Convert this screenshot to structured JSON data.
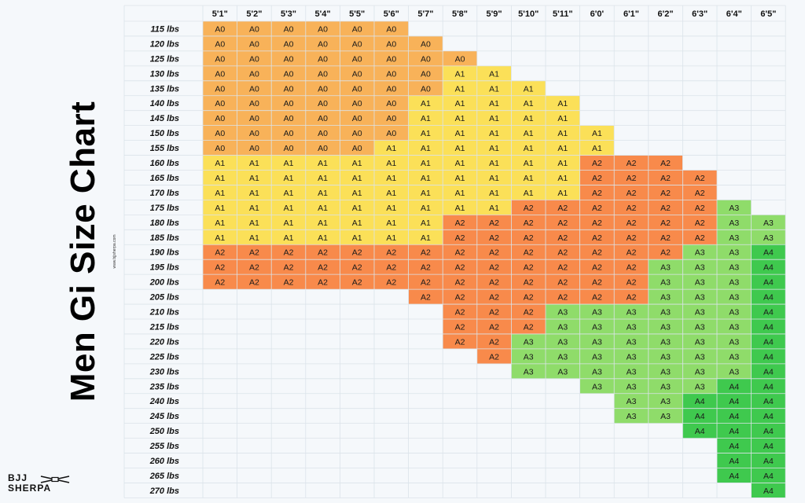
{
  "title": "Men Gi Size Chart",
  "website": "www.bjjsherpa.com",
  "logo": {
    "line1": "BJJ",
    "line2": "SHERPA"
  },
  "colors": {
    "A0": "#f8b259",
    "A1": "#fbe058",
    "A2": "#f88a4b",
    "A3": "#8fdc6a",
    "A4": "#3fc94e",
    "grid": "#dbe3ea"
  },
  "chart_data": {
    "type": "table",
    "title": "Men Gi Size Chart",
    "columns": [
      "5'1\"",
      "5'2\"",
      "5'3\"",
      "5'4\"",
      "5'5\"",
      "5'6\"",
      "5'7\"",
      "5'8\"",
      "5'9\"",
      "5'10\"",
      "5'11\"",
      "6'0'",
      "6'1\"",
      "6'2\"",
      "6'3\"",
      "6'4\"",
      "6'5\""
    ],
    "rows": [
      "115 lbs",
      "120 lbs",
      "125 lbs",
      "130 lbs",
      "135 lbs",
      "140 lbs",
      "145 lbs",
      "150 lbs",
      "155 lbs",
      "160 lbs",
      "165 lbs",
      "170 lbs",
      "175 lbs",
      "180 lbs",
      "185 lbs",
      "190 lbs",
      "195 lbs",
      "200 lbs",
      "205 lbs",
      "210 lbs",
      "215 lbs",
      "220 lbs",
      "225 lbs",
      "230 lbs",
      "235 lbs",
      "240 lbs",
      "245 lbs",
      "250 lbs",
      "255 lbs",
      "260 lbs",
      "265 lbs",
      "270 lbs"
    ],
    "cells": [
      [
        "A0",
        "A0",
        "A0",
        "A0",
        "A0",
        "A0",
        "",
        "",
        "",
        "",
        "",
        "",
        "",
        "",
        "",
        "",
        ""
      ],
      [
        "A0",
        "A0",
        "A0",
        "A0",
        "A0",
        "A0",
        "A0",
        "",
        "",
        "",
        "",
        "",
        "",
        "",
        "",
        "",
        ""
      ],
      [
        "A0",
        "A0",
        "A0",
        "A0",
        "A0",
        "A0",
        "A0",
        "A0",
        "",
        "",
        "",
        "",
        "",
        "",
        "",
        "",
        ""
      ],
      [
        "A0",
        "A0",
        "A0",
        "A0",
        "A0",
        "A0",
        "A0",
        "A1",
        "A1",
        "",
        "",
        "",
        "",
        "",
        "",
        "",
        ""
      ],
      [
        "A0",
        "A0",
        "A0",
        "A0",
        "A0",
        "A0",
        "A0",
        "A1",
        "A1",
        "A1",
        "",
        "",
        "",
        "",
        "",
        "",
        ""
      ],
      [
        "A0",
        "A0",
        "A0",
        "A0",
        "A0",
        "A0",
        "A1",
        "A1",
        "A1",
        "A1",
        "A1",
        "",
        "",
        "",
        "",
        "",
        ""
      ],
      [
        "A0",
        "A0",
        "A0",
        "A0",
        "A0",
        "A0",
        "A1",
        "A1",
        "A1",
        "A1",
        "A1",
        "",
        "",
        "",
        "",
        "",
        ""
      ],
      [
        "A0",
        "A0",
        "A0",
        "A0",
        "A0",
        "A0",
        "A1",
        "A1",
        "A1",
        "A1",
        "A1",
        "A1",
        "",
        "",
        "",
        "",
        ""
      ],
      [
        "A0",
        "A0",
        "A0",
        "A0",
        "A0",
        "A1",
        "A1",
        "A1",
        "A1",
        "A1",
        "A1",
        "A1",
        "",
        "",
        "",
        "",
        ""
      ],
      [
        "A1",
        "A1",
        "A1",
        "A1",
        "A1",
        "A1",
        "A1",
        "A1",
        "A1",
        "A1",
        "A1",
        "A2",
        "A2",
        "A2",
        "",
        "",
        ""
      ],
      [
        "A1",
        "A1",
        "A1",
        "A1",
        "A1",
        "A1",
        "A1",
        "A1",
        "A1",
        "A1",
        "A1",
        "A2",
        "A2",
        "A2",
        "A2",
        "",
        ""
      ],
      [
        "A1",
        "A1",
        "A1",
        "A1",
        "A1",
        "A1",
        "A1",
        "A1",
        "A1",
        "A1",
        "A1",
        "A2",
        "A2",
        "A2",
        "A2",
        "",
        ""
      ],
      [
        "A1",
        "A1",
        "A1",
        "A1",
        "A1",
        "A1",
        "A1",
        "A1",
        "A1",
        "A2",
        "A2",
        "A2",
        "A2",
        "A2",
        "A2",
        "A3",
        ""
      ],
      [
        "A1",
        "A1",
        "A1",
        "A1",
        "A1",
        "A1",
        "A1",
        "A2",
        "A2",
        "A2",
        "A2",
        "A2",
        "A2",
        "A2",
        "A2",
        "A3",
        "A3"
      ],
      [
        "A1",
        "A1",
        "A1",
        "A1",
        "A1",
        "A1",
        "A1",
        "A2",
        "A2",
        "A2",
        "A2",
        "A2",
        "A2",
        "A2",
        "A2",
        "A3",
        "A3"
      ],
      [
        "A2",
        "A2",
        "A2",
        "A2",
        "A2",
        "A2",
        "A2",
        "A2",
        "A2",
        "A2",
        "A2",
        "A2",
        "A2",
        "A2",
        "A3",
        "A3",
        "A4"
      ],
      [
        "A2",
        "A2",
        "A2",
        "A2",
        "A2",
        "A2",
        "A2",
        "A2",
        "A2",
        "A2",
        "A2",
        "A2",
        "A2",
        "A3",
        "A3",
        "A3",
        "A4"
      ],
      [
        "A2",
        "A2",
        "A2",
        "A2",
        "A2",
        "A2",
        "A2",
        "A2",
        "A2",
        "A2",
        "A2",
        "A2",
        "A2",
        "A3",
        "A3",
        "A3",
        "A4"
      ],
      [
        "",
        "",
        "",
        "",
        "",
        "",
        "A2",
        "A2",
        "A2",
        "A2",
        "A2",
        "A2",
        "A2",
        "A3",
        "A3",
        "A3",
        "A4"
      ],
      [
        "",
        "",
        "",
        "",
        "",
        "",
        "",
        "A2",
        "A2",
        "A2",
        "A3",
        "A3",
        "A3",
        "A3",
        "A3",
        "A3",
        "A4"
      ],
      [
        "",
        "",
        "",
        "",
        "",
        "",
        "",
        "A2",
        "A2",
        "A2",
        "A3",
        "A3",
        "A3",
        "A3",
        "A3",
        "A3",
        "A4"
      ],
      [
        "",
        "",
        "",
        "",
        "",
        "",
        "",
        "A2",
        "A2",
        "A3",
        "A3",
        "A3",
        "A3",
        "A3",
        "A3",
        "A3",
        "A4"
      ],
      [
        "",
        "",
        "",
        "",
        "",
        "",
        "",
        "",
        "A2",
        "A3",
        "A3",
        "A3",
        "A3",
        "A3",
        "A3",
        "A3",
        "A4"
      ],
      [
        "",
        "",
        "",
        "",
        "",
        "",
        "",
        "",
        "",
        "A3",
        "A3",
        "A3",
        "A3",
        "A3",
        "A3",
        "A3",
        "A4"
      ],
      [
        "",
        "",
        "",
        "",
        "",
        "",
        "",
        "",
        "",
        "",
        "",
        "A3",
        "A3",
        "A3",
        "A3",
        "A4",
        "A4"
      ],
      [
        "",
        "",
        "",
        "",
        "",
        "",
        "",
        "",
        "",
        "",
        "",
        "",
        "A3",
        "A3",
        "A4",
        "A4",
        "A4"
      ],
      [
        "",
        "",
        "",
        "",
        "",
        "",
        "",
        "",
        "",
        "",
        "",
        "",
        "A3",
        "A3",
        "A4",
        "A4",
        "A4"
      ],
      [
        "",
        "",
        "",
        "",
        "",
        "",
        "",
        "",
        "",
        "",
        "",
        "",
        "",
        "",
        "A4",
        "A4",
        "A4"
      ],
      [
        "",
        "",
        "",
        "",
        "",
        "",
        "",
        "",
        "",
        "",
        "",
        "",
        "",
        "",
        "",
        "A4",
        "A4"
      ],
      [
        "",
        "",
        "",
        "",
        "",
        "",
        "",
        "",
        "",
        "",
        "",
        "",
        "",
        "",
        "",
        "A4",
        "A4"
      ],
      [
        "",
        "",
        "",
        "",
        "",
        "",
        "",
        "",
        "",
        "",
        "",
        "",
        "",
        "",
        "",
        "A4",
        "A4"
      ],
      [
        "",
        "",
        "",
        "",
        "",
        "",
        "",
        "",
        "",
        "",
        "",
        "",
        "",
        "",
        "",
        "",
        "A4"
      ]
    ]
  }
}
